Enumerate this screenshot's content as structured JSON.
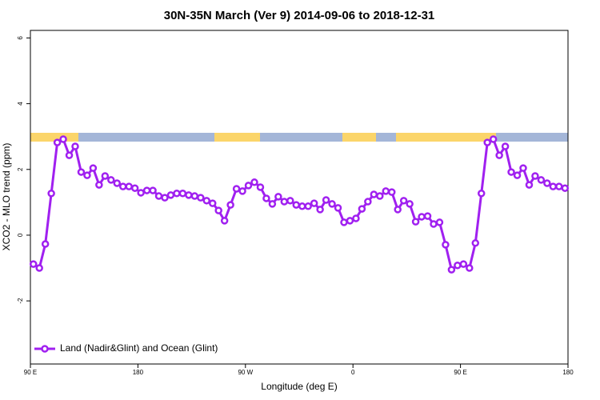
{
  "chart_data": {
    "type": "line",
    "title": "30N-35N March (Ver 9)   2014-09-06 to 2018-12-31",
    "x_label": "Longitude (deg E)",
    "y_label": "XCO2 - MLO trend (ppm)",
    "x": [
      92.5,
      97.5,
      102.5,
      107.5,
      112.5,
      117.5,
      122.5,
      127.5,
      132.5,
      137.5,
      142.5,
      147.5,
      152.5,
      157.5,
      162.5,
      167.5,
      172.5,
      177.5,
      182.5,
      187.5,
      192.5,
      197.5,
      202.5,
      207.5,
      212.5,
      217.5,
      222.5,
      227.5,
      232.5,
      237.5,
      242.5,
      247.5,
      252.5,
      257.5,
      262.5,
      267.5,
      272.5,
      277.5,
      282.5,
      287.5,
      292.5,
      297.5,
      302.5,
      307.5,
      312.5,
      317.5,
      322.5,
      327.5,
      332.5,
      337.5,
      342.5,
      347.5,
      352.5,
      357.5,
      362.5,
      367.5,
      372.5,
      377.5,
      382.5,
      387.5,
      392.5,
      397.5,
      402.5,
      407.5,
      412.5,
      417.5,
      422.5,
      427.5,
      432.5,
      437.5,
      442.5,
      447.5,
      452.5,
      457.5,
      462.5,
      467.5,
      472.5,
      477.5,
      482.5,
      487.5,
      492.5,
      497.5,
      502.5,
      507.5,
      512.5,
      517.5,
      522.5,
      527.5,
      532.5,
      537.5
    ],
    "series": [
      {
        "name": "Land (Nadir&Glint) and Ocean (Glint)",
        "color": "#a020f0",
        "values": [
          -0.88,
          -1.0,
          -0.27,
          1.27,
          2.82,
          2.92,
          2.43,
          2.7,
          1.92,
          1.82,
          2.04,
          1.53,
          1.8,
          1.68,
          1.58,
          1.48,
          1.48,
          1.43,
          1.29,
          1.36,
          1.36,
          1.19,
          1.14,
          1.22,
          1.27,
          1.27,
          1.22,
          1.19,
          1.14,
          1.05,
          0.97,
          0.75,
          0.44,
          0.92,
          1.41,
          1.34,
          1.51,
          1.61,
          1.46,
          1.12,
          0.95,
          1.17,
          1.02,
          1.05,
          0.92,
          0.88,
          0.88,
          0.97,
          0.78,
          1.07,
          0.95,
          0.83,
          0.39,
          0.44,
          0.51,
          0.8,
          1.02,
          1.24,
          1.19,
          1.34,
          1.31,
          0.78,
          1.05,
          0.95,
          0.41,
          0.56,
          0.58,
          0.34,
          0.39,
          -0.29,
          -1.05,
          -0.92,
          -0.88,
          -1.0,
          -0.24,
          1.27,
          2.82,
          2.92,
          2.43,
          2.7,
          1.92,
          1.82,
          2.04,
          1.53,
          1.8,
          1.68,
          1.58,
          1.48,
          1.48,
          1.43
        ]
      }
    ],
    "xlim": [
      90,
      540
    ],
    "xticks": [
      {
        "value": 90,
        "label": "90 E"
      },
      180,
      {
        "value": 270,
        "label": "90 W"
      },
      {
        "value": 360,
        "label": "0"
      },
      {
        "value": 450,
        "label": "90 E"
      },
      {
        "value": 540,
        "label": "180"
      }
    ],
    "ylim": [
      -3.92,
      6.23
    ],
    "yticks": [
      -2,
      0,
      2,
      4,
      6
    ],
    "legend": "bottom-left"
  }
}
